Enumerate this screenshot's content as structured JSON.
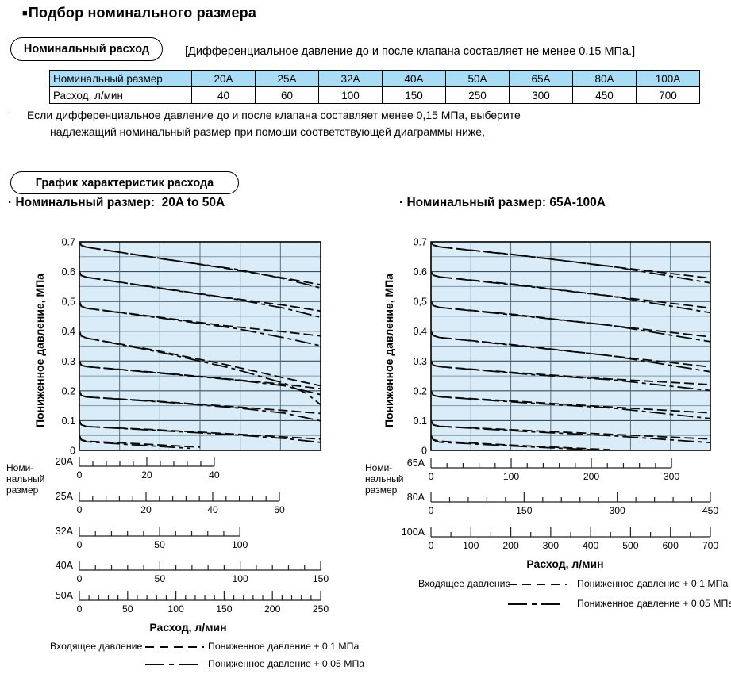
{
  "colors": {
    "light_blue": "#a9ddf5",
    "chart_bg": "#d9ecf8",
    "grid_minor": "#7e98a6",
    "grid_major": "#3c4b54",
    "curve": "#0a0a0a",
    "tick": "#222222"
  },
  "header": {
    "bullet": "■",
    "title": "Подбор номинального размера"
  },
  "section_flow": {
    "pill": "Номинальный расход",
    "bracket_note": "[Дифференциальное давление до и после клапана составляет не менее 0,15 МПа.]"
  },
  "table": {
    "header": [
      "Номинальный размер",
      "20A",
      "25A",
      "32A",
      "40A",
      "50A",
      "65A",
      "80A",
      "100A"
    ],
    "rows": [
      [
        "Расход, л/мин",
        "40",
        "60",
        "100",
        "150",
        "250",
        "300",
        "450",
        "700"
      ]
    ]
  },
  "note": {
    "bullet": "·",
    "line1": "Если дифференциальное давление до и после клапана составляет менее 0,15 МПа, выберите",
    "line2": "надлежащий номинальный размер при помощи соответствующей диаграммы ниже,"
  },
  "section_chart": {
    "pill": "График характеристик расхода"
  },
  "chart_data": [
    {
      "type": "line",
      "title": "· Номинальный размер:  20A to 50A",
      "ylabel": "Пониженное давление, МПа",
      "xlabel": "Расход, л/мин",
      "ylim": [
        0,
        0.7
      ],
      "ytick_labels": [
        "0.7",
        "0.6",
        "0,5",
        "0.4",
        "0.3",
        "0.2",
        "0.1",
        "0"
      ],
      "grid": {
        "h_step": 0.05,
        "v_columns": 6
      },
      "size_axis_label": "Номи-\nнальный\nразмер",
      "rulers": [
        {
          "size": "20A",
          "max": 40,
          "minor_step": 4,
          "major_step": 20,
          "length_frac": 0.559
        },
        {
          "size": "25A",
          "max": 60,
          "minor_step": 4,
          "major_step": 20,
          "length_frac": 0.829
        },
        {
          "size": "32A",
          "max": 100,
          "minor_step": 10,
          "major_step": 50,
          "length_frac": 0.665
        },
        {
          "size": "40A",
          "max": 150,
          "minor_step": 10,
          "major_step": 50,
          "length_frac": 1
        },
        {
          "size": "50A",
          "max": 250,
          "minor_step": 10,
          "major_step": 50,
          "length_frac": 1
        }
      ],
      "legend": {
        "lead": "Входящее давление",
        "entries": [
          {
            "style": "dash",
            "label": "Пониженное давление + 0,1 МПа"
          },
          {
            "style": "dashdot",
            "label": "Пониженное давление + 0,05 МПа"
          }
        ]
      },
      "families": [
        {
          "set": 0.7,
          "plus01": [
            [
              0,
              0.7
            ],
            [
              0.008,
              0.688
            ],
            [
              0.03,
              0.682
            ],
            [
              0.3,
              0.649
            ],
            [
              0.6,
              0.612
            ],
            [
              0.85,
              0.578
            ],
            [
              1,
              0.556
            ]
          ],
          "plus005": [
            [
              0,
              0.7
            ],
            [
              0.008,
              0.688
            ],
            [
              0.03,
              0.682
            ],
            [
              0.35,
              0.642
            ],
            [
              0.65,
              0.608
            ],
            [
              0.85,
              0.576
            ],
            [
              1,
              0.545
            ]
          ]
        },
        {
          "set": 0.6,
          "plus01": [
            [
              0,
              0.6
            ],
            [
              0.008,
              0.587
            ],
            [
              0.03,
              0.581
            ],
            [
              0.3,
              0.549
            ],
            [
              0.6,
              0.514
            ],
            [
              0.85,
              0.487
            ],
            [
              1,
              0.468
            ]
          ],
          "plus005": [
            [
              0,
              0.6
            ],
            [
              0.008,
              0.587
            ],
            [
              0.03,
              0.581
            ],
            [
              0.35,
              0.542
            ],
            [
              0.65,
              0.507
            ],
            [
              0.85,
              0.477
            ],
            [
              1,
              0.447
            ]
          ]
        },
        {
          "set": 0.5,
          "plus01": [
            [
              0,
              0.5
            ],
            [
              0.008,
              0.484
            ],
            [
              0.03,
              0.477
            ],
            [
              0.3,
              0.45
            ],
            [
              0.6,
              0.419
            ],
            [
              0.85,
              0.398
            ],
            [
              1,
              0.384
            ]
          ],
          "plus005": [
            [
              0,
              0.5
            ],
            [
              0.008,
              0.484
            ],
            [
              0.03,
              0.477
            ],
            [
              0.35,
              0.443
            ],
            [
              0.65,
              0.409
            ],
            [
              0.85,
              0.378
            ],
            [
              1,
              0.351
            ]
          ]
        },
        {
          "set": 0.4,
          "plus01": [
            [
              0,
              0.4
            ],
            [
              0.008,
              0.384
            ],
            [
              0.03,
              0.377
            ],
            [
              0.3,
              0.338
            ],
            [
              0.6,
              0.289
            ],
            [
              0.85,
              0.243
            ],
            [
              1,
              0.217
            ]
          ],
          "plus005": [
            [
              0,
              0.4
            ],
            [
              0.008,
              0.384
            ],
            [
              0.03,
              0.377
            ],
            [
              0.35,
              0.327
            ],
            [
              0.65,
              0.272
            ],
            [
              0.85,
              0.225
            ],
            [
              0.94,
              0.192
            ],
            [
              1,
              0.153
            ]
          ]
        },
        {
          "set": 0.3,
          "plus01": [
            [
              0,
              0.3
            ],
            [
              0.008,
              0.286
            ],
            [
              0.03,
              0.281
            ],
            [
              0.3,
              0.263
            ],
            [
              0.6,
              0.241
            ],
            [
              0.85,
              0.222
            ],
            [
              1,
              0.207
            ]
          ],
          "plus005": [
            [
              0,
              0.3
            ],
            [
              0.008,
              0.286
            ],
            [
              0.03,
              0.281
            ],
            [
              0.35,
              0.258
            ],
            [
              0.65,
              0.236
            ],
            [
              0.85,
              0.217
            ],
            [
              1,
              0.187
            ]
          ]
        },
        {
          "set": 0.2,
          "plus01": [
            [
              0,
              0.2
            ],
            [
              0.008,
              0.185
            ],
            [
              0.03,
              0.179
            ],
            [
              0.3,
              0.166
            ],
            [
              0.6,
              0.149
            ],
            [
              0.85,
              0.134
            ],
            [
              1,
              0.124
            ]
          ],
          "plus005": [
            [
              0,
              0.2
            ],
            [
              0.008,
              0.185
            ],
            [
              0.03,
              0.179
            ],
            [
              0.35,
              0.162
            ],
            [
              0.65,
              0.143
            ],
            [
              0.85,
              0.125
            ],
            [
              1,
              0.099
            ]
          ]
        },
        {
          "set": 0.1,
          "plus01": [
            [
              0,
              0.1
            ],
            [
              0.008,
              0.086
            ],
            [
              0.03,
              0.08
            ],
            [
              0.3,
              0.07
            ],
            [
              0.6,
              0.057
            ],
            [
              0.85,
              0.045
            ],
            [
              1,
              0.038
            ]
          ],
          "plus005": [
            [
              0,
              0.1
            ],
            [
              0.008,
              0.086
            ],
            [
              0.03,
              0.08
            ],
            [
              0.35,
              0.066
            ],
            [
              0.65,
              0.052
            ],
            [
              0.85,
              0.04
            ],
            [
              1,
              0.027
            ]
          ]
        },
        {
          "set": 0.05,
          "plus01": [
            [
              0,
              0.05
            ],
            [
              0.008,
              0.036
            ],
            [
              0.03,
              0.031
            ],
            [
              0.25,
              0.022
            ],
            [
              0.5,
              0.011
            ]
          ],
          "plus005": [
            [
              0,
              0.05
            ],
            [
              0.008,
              0.035
            ],
            [
              0.03,
              0.029
            ],
            [
              0.28,
              0.016
            ],
            [
              0.46,
              0.007
            ]
          ]
        }
      ]
    },
    {
      "type": "line",
      "title": "· Номинальный размер: 65A-100A",
      "ylabel": "Пониженное давление, МПа",
      "xlabel": "Расход, л/мин",
      "ylim": [
        0,
        0.7
      ],
      "ytick_labels": [
        "0.7",
        "0.6",
        "0,5",
        "0.4",
        "0.3",
        "0.2",
        "0.1",
        "0"
      ],
      "grid": {
        "h_step": 0.05,
        "v_columns": 7
      },
      "size_axis_label": "Номи-\nнальный\nразмер",
      "rulers": [
        {
          "size": "65A",
          "max": 300,
          "minor_step": 20,
          "major_step": 100,
          "length_frac": 0.861
        },
        {
          "size": "80A",
          "max": 450,
          "minor_step": 30,
          "major_step": 150,
          "length_frac": 1
        },
        {
          "size": "100A",
          "max": 700,
          "minor_step": 50,
          "major_step": 100,
          "length_frac": 1
        }
      ],
      "legend": {
        "lead": "Входящее давление",
        "entries": [
          {
            "style": "dash",
            "label": "Пониженное давление + 0,1 МПа"
          },
          {
            "style": "dashdot",
            "label": "Пониженное давление + 0,05 МПа"
          }
        ]
      },
      "families": [
        {
          "set": 0.7,
          "plus01": [
            [
              0,
              0.7
            ],
            [
              0.008,
              0.689
            ],
            [
              0.03,
              0.683
            ],
            [
              0.3,
              0.657
            ],
            [
              0.6,
              0.622
            ],
            [
              1,
              0.578
            ]
          ],
          "plus005": [
            [
              0,
              0.7
            ],
            [
              0.008,
              0.689
            ],
            [
              0.03,
              0.683
            ],
            [
              0.35,
              0.651
            ],
            [
              0.65,
              0.617
            ],
            [
              1,
              0.562
            ]
          ]
        },
        {
          "set": 0.6,
          "plus01": [
            [
              0,
              0.6
            ],
            [
              0.008,
              0.588
            ],
            [
              0.03,
              0.582
            ],
            [
              0.3,
              0.557
            ],
            [
              0.6,
              0.523
            ],
            [
              1,
              0.478
            ]
          ],
          "plus005": [
            [
              0,
              0.6
            ],
            [
              0.008,
              0.588
            ],
            [
              0.03,
              0.582
            ],
            [
              0.35,
              0.55
            ],
            [
              0.65,
              0.517
            ],
            [
              1,
              0.462
            ]
          ]
        },
        {
          "set": 0.5,
          "plus01": [
            [
              0,
              0.5
            ],
            [
              0.008,
              0.486
            ],
            [
              0.03,
              0.48
            ],
            [
              0.3,
              0.456
            ],
            [
              0.6,
              0.424
            ],
            [
              1,
              0.381
            ]
          ],
          "plus005": [
            [
              0,
              0.5
            ],
            [
              0.008,
              0.486
            ],
            [
              0.03,
              0.48
            ],
            [
              0.35,
              0.449
            ],
            [
              0.65,
              0.419
            ],
            [
              1,
              0.365
            ]
          ]
        },
        {
          "set": 0.4,
          "plus01": [
            [
              0,
              0.4
            ],
            [
              0.008,
              0.385
            ],
            [
              0.03,
              0.379
            ],
            [
              0.3,
              0.354
            ],
            [
              0.6,
              0.322
            ],
            [
              1,
              0.28
            ]
          ],
          "plus005": [
            [
              0,
              0.4
            ],
            [
              0.008,
              0.385
            ],
            [
              0.03,
              0.379
            ],
            [
              0.35,
              0.347
            ],
            [
              0.65,
              0.317
            ],
            [
              1,
              0.264
            ]
          ]
        },
        {
          "set": 0.3,
          "plus01": [
            [
              0,
              0.3
            ],
            [
              0.008,
              0.286
            ],
            [
              0.03,
              0.281
            ],
            [
              0.3,
              0.261
            ],
            [
              0.6,
              0.242
            ],
            [
              1,
              0.221
            ]
          ],
          "plus005": [
            [
              0,
              0.3
            ],
            [
              0.008,
              0.286
            ],
            [
              0.03,
              0.281
            ],
            [
              0.35,
              0.255
            ],
            [
              0.65,
              0.237
            ],
            [
              1,
              0.201
            ]
          ]
        },
        {
          "set": 0.2,
          "plus01": [
            [
              0,
              0.2
            ],
            [
              0.008,
              0.185
            ],
            [
              0.03,
              0.18
            ],
            [
              0.3,
              0.165
            ],
            [
              0.6,
              0.148
            ],
            [
              1,
              0.126
            ]
          ],
          "plus005": [
            [
              0,
              0.2
            ],
            [
              0.008,
              0.185
            ],
            [
              0.03,
              0.18
            ],
            [
              0.35,
              0.159
            ],
            [
              0.65,
              0.142
            ],
            [
              1,
              0.107
            ]
          ]
        },
        {
          "set": 0.1,
          "plus01": [
            [
              0,
              0.1
            ],
            [
              0.008,
              0.086
            ],
            [
              0.03,
              0.081
            ],
            [
              0.3,
              0.069
            ],
            [
              0.6,
              0.056
            ],
            [
              1,
              0.038
            ]
          ],
          "plus005": [
            [
              0,
              0.1
            ],
            [
              0.008,
              0.086
            ],
            [
              0.03,
              0.081
            ],
            [
              0.35,
              0.063
            ],
            [
              0.65,
              0.049
            ],
            [
              1,
              0.026
            ]
          ]
        },
        {
          "set": 0.05,
          "plus01": [
            [
              0,
              0.05
            ],
            [
              0.008,
              0.036
            ],
            [
              0.03,
              0.031
            ],
            [
              0.3,
              0.017
            ],
            [
              0.55,
              0.006
            ],
            [
              0.64,
              0.002
            ]
          ],
          "plus005": [
            [
              0,
              0.05
            ],
            [
              0.008,
              0.035
            ],
            [
              0.03,
              0.028
            ],
            [
              0.35,
              0.012
            ],
            [
              0.58,
              0.002
            ]
          ]
        }
      ]
    }
  ]
}
